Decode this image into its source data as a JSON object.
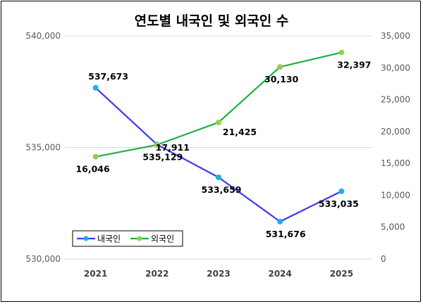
{
  "chart_data": {
    "type": "line",
    "title": "연도별 내국인 및 외국인 수",
    "categories": [
      "2021",
      "2022",
      "2023",
      "2024",
      "2025"
    ],
    "series": [
      {
        "name": "내국인",
        "axis": "left",
        "values": [
          537673,
          535129,
          533659,
          531676,
          533035
        ],
        "labels": [
          "537,673",
          "535,129",
          "533,659",
          "531,676",
          "533,035"
        ],
        "line_color": "#3b3bf0",
        "marker_color": "#1ab0f0"
      },
      {
        "name": "외국인",
        "axis": "right",
        "values": [
          16046,
          17911,
          21425,
          30130,
          32397
        ],
        "labels": [
          "16,046",
          "17,911",
          "21,425",
          "30,130",
          "32,397"
        ],
        "line_color": "#1eb040",
        "marker_color": "#92d050"
      }
    ],
    "y_left": {
      "min": 530000,
      "max": 540000,
      "ticks": [
        530000,
        535000,
        540000
      ],
      "tick_labels": [
        "530,000",
        "535,000",
        "540,000"
      ]
    },
    "y_right": {
      "min": 0,
      "max": 35000,
      "ticks": [
        0,
        5000,
        10000,
        15000,
        20000,
        25000,
        30000,
        35000
      ],
      "tick_labels": [
        "0",
        "5,000",
        "10,000",
        "15,000",
        "20,000",
        "25,000",
        "30,000",
        "35,000"
      ]
    },
    "grid": true,
    "legend_position": "bottom-left inside"
  }
}
